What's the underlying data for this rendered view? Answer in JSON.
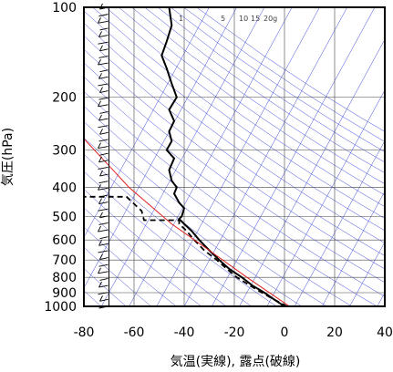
{
  "chart_data": {
    "type": "line",
    "title": "",
    "xlabel": "気温(実線), 露点(破線)",
    "ylabel": "気圧(hPa)",
    "xlim": [
      -80,
      40
    ],
    "ylim": [
      1000,
      100
    ],
    "y_scale": "log",
    "grid": true,
    "x_ticks": [
      -80,
      -60,
      -40,
      -20,
      0,
      20,
      40
    ],
    "y_ticks": [
      100,
      200,
      300,
      400,
      500,
      600,
      700,
      800,
      900,
      1000
    ],
    "mixing_ratio_labels": [
      "1",
      "5",
      "10",
      "15",
      "20g"
    ],
    "mixing_ratio_values": [
      1,
      5,
      10,
      15,
      20
    ],
    "series": [
      {
        "role": "temperature",
        "style": "solid",
        "color": "#000000",
        "points": [
          [
            0,
            1000
          ],
          [
            -4,
            950
          ],
          [
            -8,
            900
          ],
          [
            -13,
            850
          ],
          [
            -17,
            800
          ],
          [
            -22,
            750
          ],
          [
            -26,
            700
          ],
          [
            -30,
            650
          ],
          [
            -34,
            600
          ],
          [
            -37,
            560
          ],
          [
            -40,
            530
          ],
          [
            -42,
            510
          ],
          [
            -41,
            500
          ],
          [
            -40,
            470
          ],
          [
            -42,
            450
          ],
          [
            -44,
            420
          ],
          [
            -43,
            400
          ],
          [
            -45,
            380
          ],
          [
            -46,
            350
          ],
          [
            -44,
            320
          ],
          [
            -47,
            300
          ],
          [
            -45,
            280
          ],
          [
            -46,
            260
          ],
          [
            -44,
            240
          ],
          [
            -46,
            220
          ],
          [
            -43,
            200
          ],
          [
            -45,
            180
          ],
          [
            -47,
            160
          ],
          [
            -49,
            145
          ],
          [
            -47,
            130
          ],
          [
            -45,
            115
          ],
          [
            -46,
            100
          ]
        ]
      },
      {
        "role": "dewpoint",
        "style": "dashed",
        "color": "#000000",
        "points": [
          [
            1,
            1000
          ],
          [
            -4,
            950
          ],
          [
            -9,
            900
          ],
          [
            -14,
            850
          ],
          [
            -19,
            800
          ],
          [
            -23,
            750
          ],
          [
            -27,
            700
          ],
          [
            -32,
            650
          ],
          [
            -36,
            600
          ],
          [
            -39,
            560
          ],
          [
            -42,
            530
          ],
          [
            -42,
            515
          ],
          [
            -56,
            515
          ],
          [
            -57,
            480
          ],
          [
            -63,
            430
          ],
          [
            -72,
            430
          ],
          [
            -80,
            430
          ]
        ]
      },
      {
        "role": "parcel-curve",
        "style": "solid",
        "color": "#e02020",
        "points": [
          [
            2,
            1000
          ],
          [
            -15,
            800
          ],
          [
            -30,
            650
          ],
          [
            -45,
            530
          ],
          [
            -62,
            400
          ],
          [
            -80,
            275
          ]
        ]
      }
    ],
    "wind_column_x": -70
  }
}
